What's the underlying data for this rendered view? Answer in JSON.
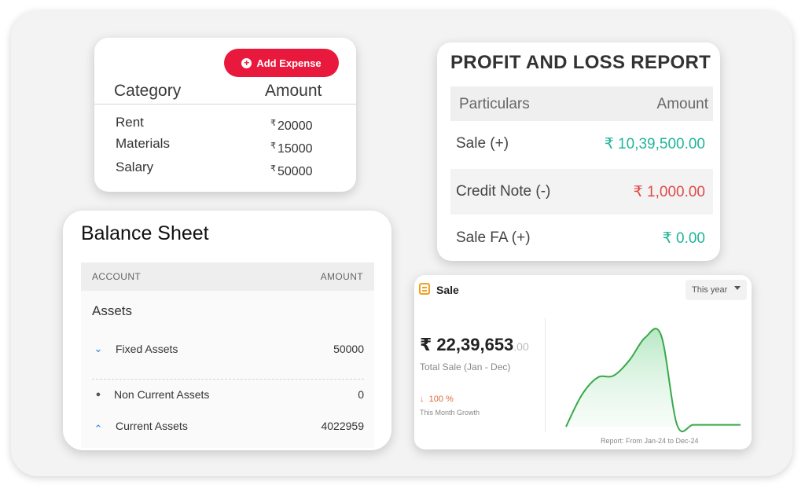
{
  "expense": {
    "add_label": "Add Expense",
    "col_category": "Category",
    "col_amount": "Amount",
    "currency": "₹",
    "rows": [
      {
        "category": "Rent",
        "amount": "20000"
      },
      {
        "category": "Materials",
        "amount": "15000"
      },
      {
        "category": "Salary",
        "amount": "50000"
      }
    ]
  },
  "profit_loss": {
    "title": "PROFIT AND LOSS REPORT",
    "col_particulars": "Particulars",
    "col_amount": "Amount",
    "rows": [
      {
        "label": "Sale (+)",
        "value": "₹ 10,39,500.00",
        "color": "#20b59a"
      },
      {
        "label": "Credit Note (-)",
        "value": "₹ 1,000.00",
        "color": "#e04a4a"
      },
      {
        "label": "Sale FA (+)",
        "value": "₹ 0.00",
        "color": "#20b59a"
      }
    ]
  },
  "balance_sheet": {
    "title": "Balance Sheet",
    "col_account": "ACCOUNT",
    "col_amount": "AMOUNT",
    "section": "Assets",
    "rows": [
      {
        "icon": "chevron-down-icon",
        "name": "Fixed Assets",
        "amount": "50000"
      },
      {
        "icon": "bullet-icon",
        "name": "Non Current Assets",
        "amount": "0"
      },
      {
        "icon": "chevron-up-icon",
        "name": "Current Assets",
        "amount": "4022959"
      }
    ]
  },
  "sale": {
    "title": "Sale",
    "period": "This year",
    "total": "₹ 22,39,653",
    "total_decimal": ".00",
    "total_label": "Total Sale (Jan - Dec)",
    "growth": "100 %",
    "growth_label": "This Month Growth",
    "report": "Report: From Jan-24 to Dec-24",
    "accent": "#f0a020",
    "line_color": "#3aa84a"
  },
  "chart_data": {
    "type": "area",
    "x": [
      0,
      1,
      2,
      3,
      4,
      5,
      6,
      7,
      8,
      9,
      10,
      11
    ],
    "values": [
      0,
      35,
      54,
      56,
      73,
      98,
      100,
      2,
      2,
      2,
      2,
      2
    ],
    "ylim": [
      0,
      100
    ],
    "grid": false,
    "title": "",
    "xlabel": "",
    "ylabel": ""
  }
}
